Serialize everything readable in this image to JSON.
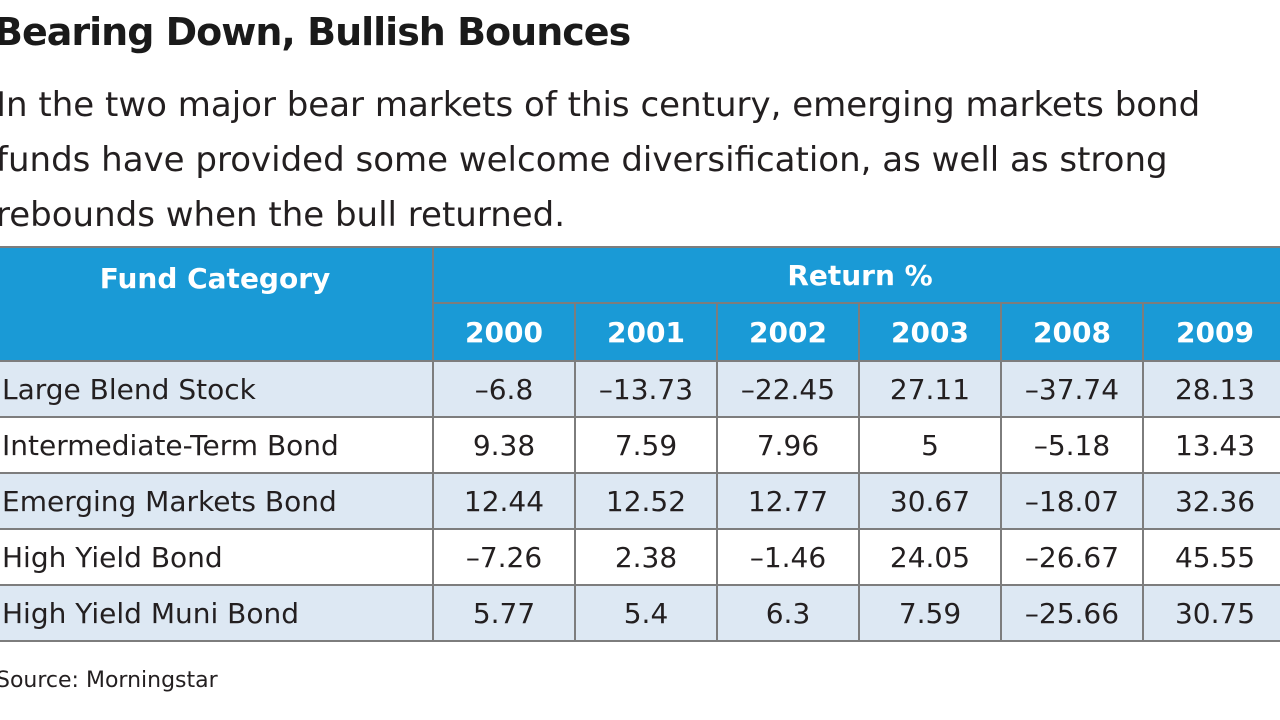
{
  "title": "Bearing Down, Bullish Bounces",
  "subtitle_lines": [
    "In the two major bear markets of this century, emerging markets bond",
    "funds have provided some welcome diversification, as well as strong",
    "rebounds when the bull returned."
  ],
  "source": "Source: Morningstar",
  "colors": {
    "header_bg": "#1a9ad6",
    "header_text": "#ffffff",
    "row_shade": "#dde8f3",
    "row_plain": "#ffffff",
    "border": "#7d7d7d"
  },
  "chart_data": {
    "type": "table",
    "title": "Bearing Down, Bullish Bounces",
    "row_header": "Fund Category",
    "column_group": "Return %",
    "columns": [
      "2000",
      "2001",
      "2002",
      "2003",
      "2008",
      "2009"
    ],
    "rows": [
      {
        "label": "Large Blend Stock",
        "values": [
          "–6.8",
          "–13.73",
          "–22.45",
          "27.11",
          "–37.74",
          "28.13"
        ]
      },
      {
        "label": "Intermediate-Term Bond",
        "values": [
          "9.38",
          "7.59",
          "7.96",
          "5",
          "–5.18",
          "13.43"
        ]
      },
      {
        "label": "Emerging Markets Bond",
        "values": [
          "12.44",
          "12.52",
          "12.77",
          "30.67",
          "–18.07",
          "32.36"
        ]
      },
      {
        "label": "High Yield Bond",
        "values": [
          "–7.26",
          "2.38",
          "–1.46",
          "24.05",
          "–26.67",
          "45.55"
        ]
      },
      {
        "label": "High Yield Muni Bond",
        "values": [
          "5.77",
          "5.4",
          "6.3",
          "7.59",
          "–25.66",
          "30.75"
        ]
      }
    ]
  }
}
